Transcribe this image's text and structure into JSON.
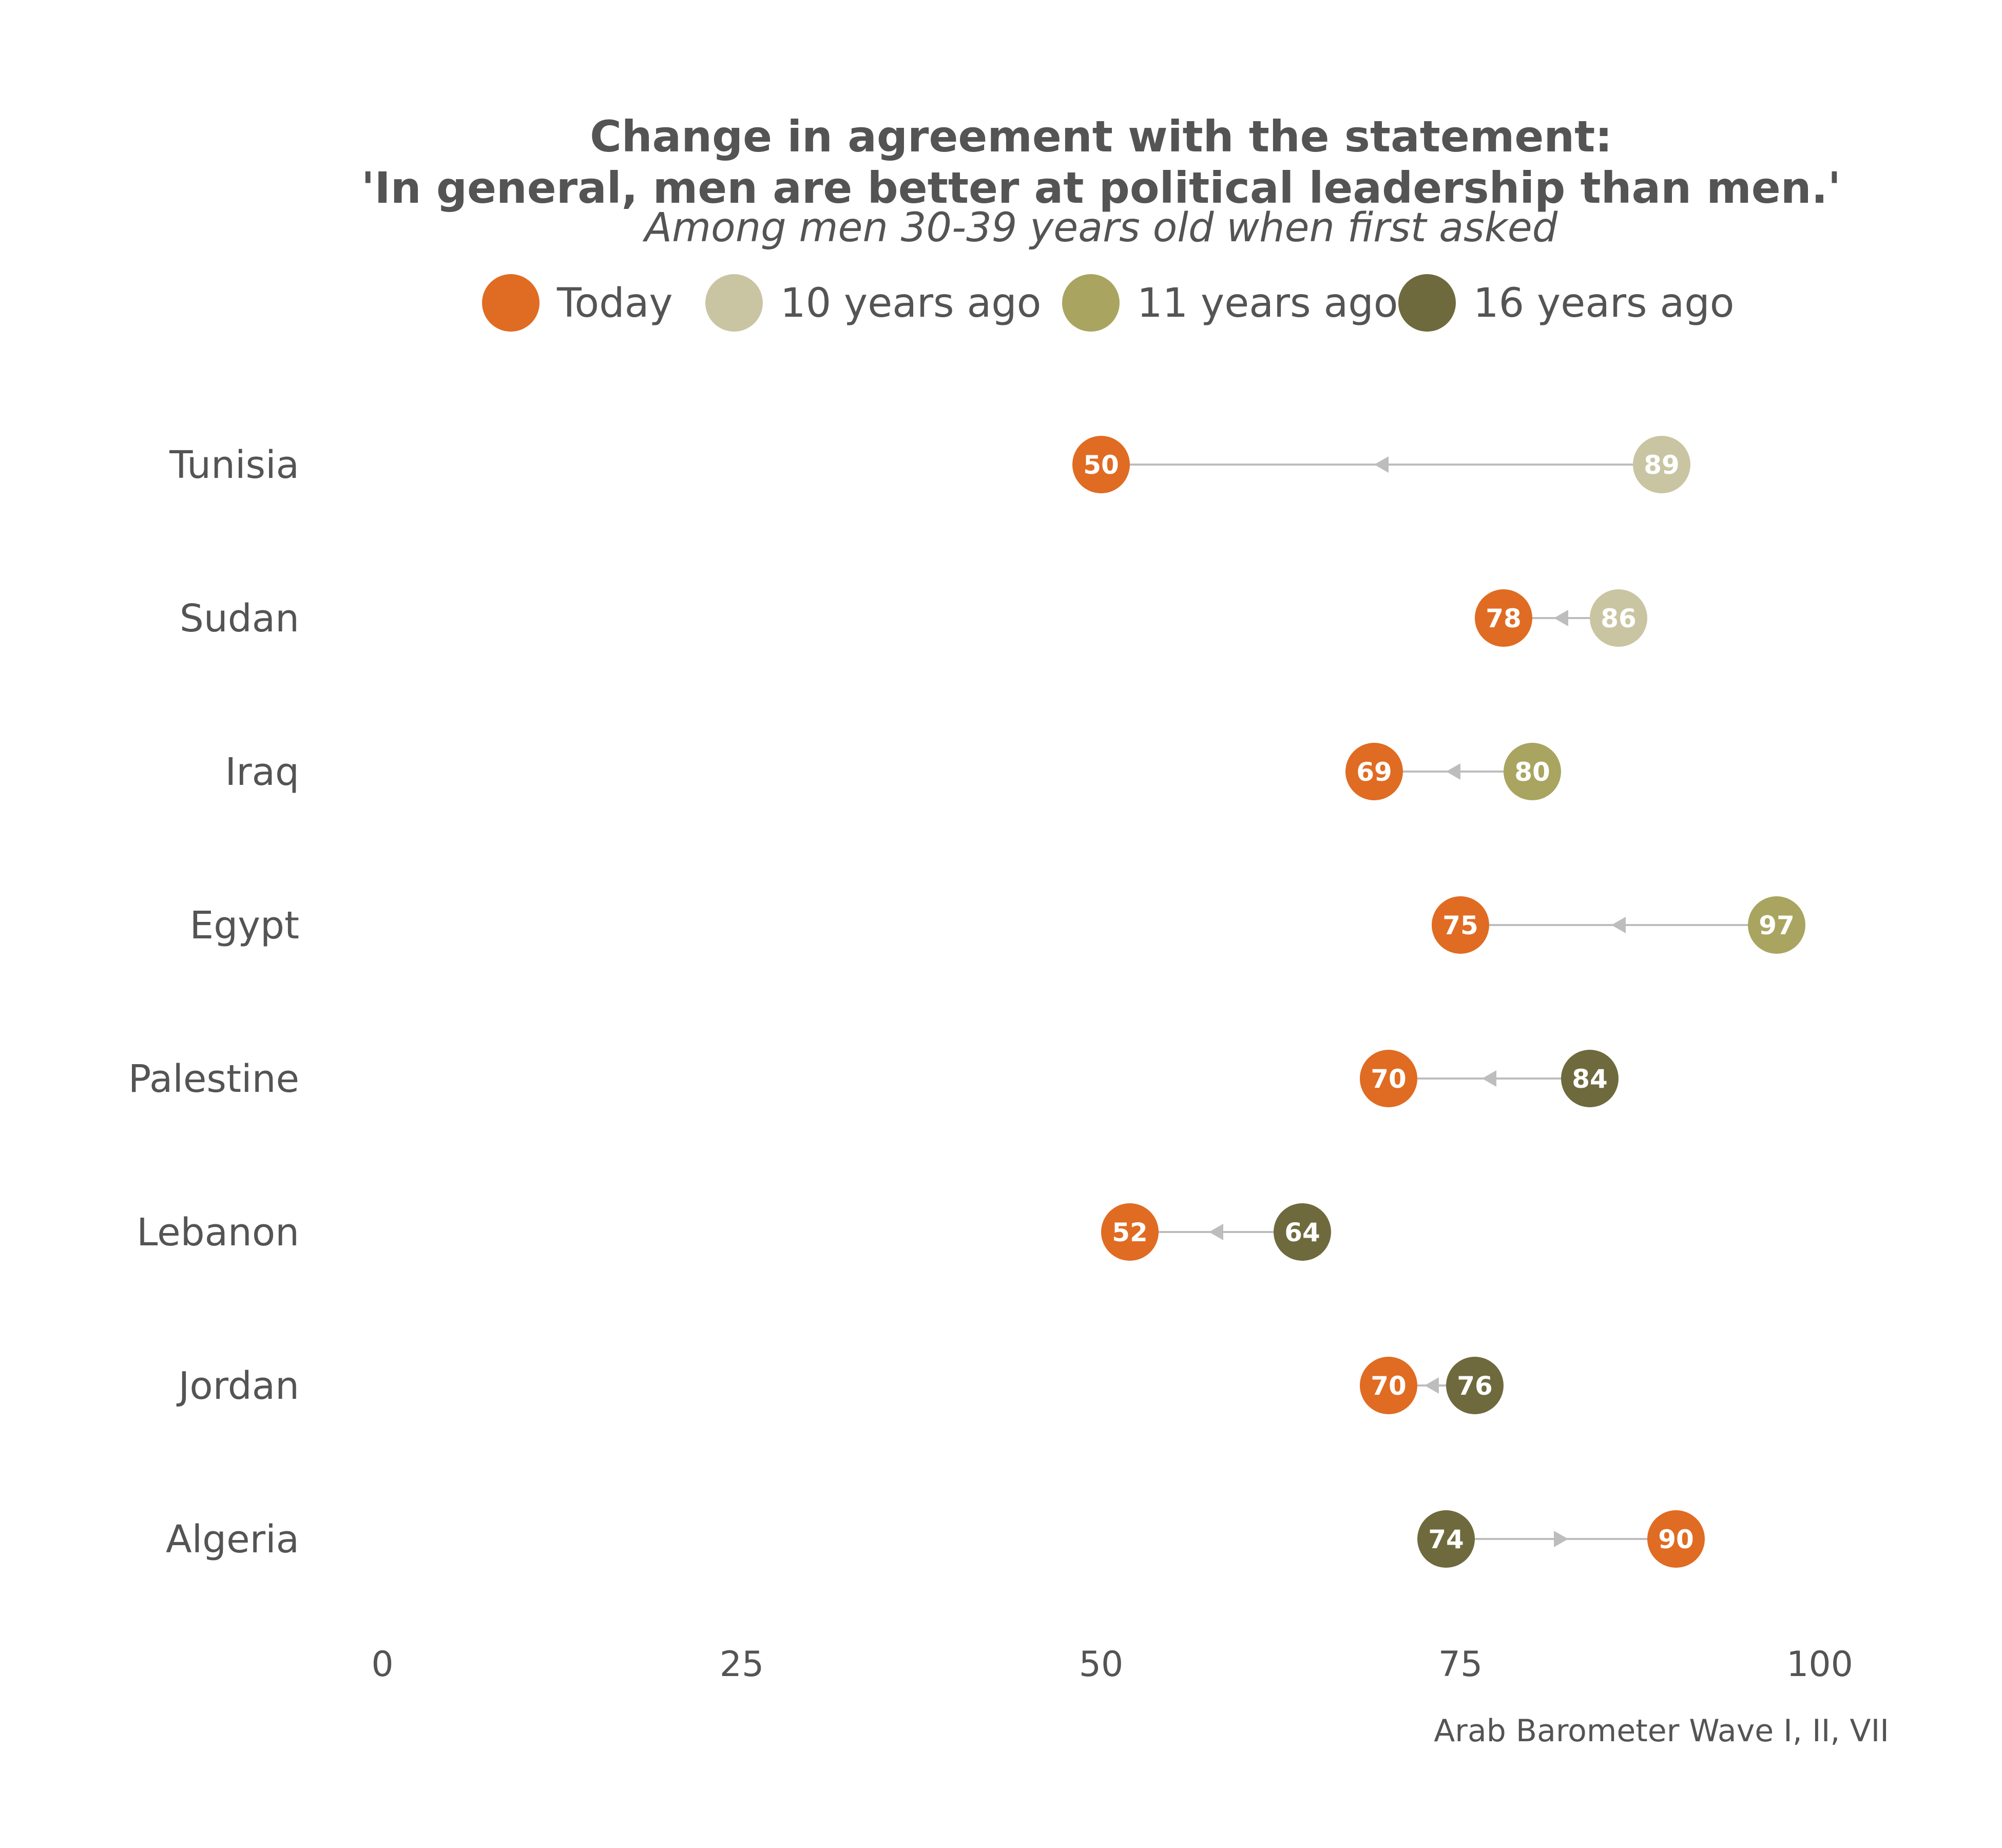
{
  "chart_data": {
    "type": "dumbbell",
    "title_lines": [
      "Change in agreement with the statement:",
      "'In general, men are better at political leadership than men.'"
    ],
    "subtitle": "Among men 30-39 years old when first asked",
    "caption": "Arab Barometer Wave I, II, VII",
    "xlim": [
      0,
      100
    ],
    "x_ticks": [
      0,
      25,
      50,
      75,
      100
    ],
    "grid": false,
    "legend_position": "top",
    "legend": [
      {
        "key": "today",
        "label": "Today",
        "color": "#E06B22"
      },
      {
        "key": "10y",
        "label": "10 years ago",
        "color": "#C9C5A2"
      },
      {
        "key": "11y",
        "label": "11 years ago",
        "color": "#A9A560"
      },
      {
        "key": "16y",
        "label": "16 years ago",
        "color": "#6E6A3D"
      }
    ],
    "rows": [
      {
        "country": "Tunisia",
        "today": 50,
        "earlier": 89,
        "earlier_period": "10y"
      },
      {
        "country": "Sudan",
        "today": 78,
        "earlier": 86,
        "earlier_period": "10y"
      },
      {
        "country": "Iraq",
        "today": 69,
        "earlier": 80,
        "earlier_period": "11y"
      },
      {
        "country": "Egypt",
        "today": 75,
        "earlier": 97,
        "earlier_period": "11y"
      },
      {
        "country": "Palestine",
        "today": 70,
        "earlier": 84,
        "earlier_period": "16y"
      },
      {
        "country": "Lebanon",
        "today": 52,
        "earlier": 64,
        "earlier_period": "16y"
      },
      {
        "country": "Jordan",
        "today": 70,
        "earlier": 76,
        "earlier_period": "16y"
      },
      {
        "country": "Algeria",
        "today": 90,
        "earlier": 74,
        "earlier_period": "16y"
      }
    ],
    "connector_color": "#BDBDBD"
  }
}
